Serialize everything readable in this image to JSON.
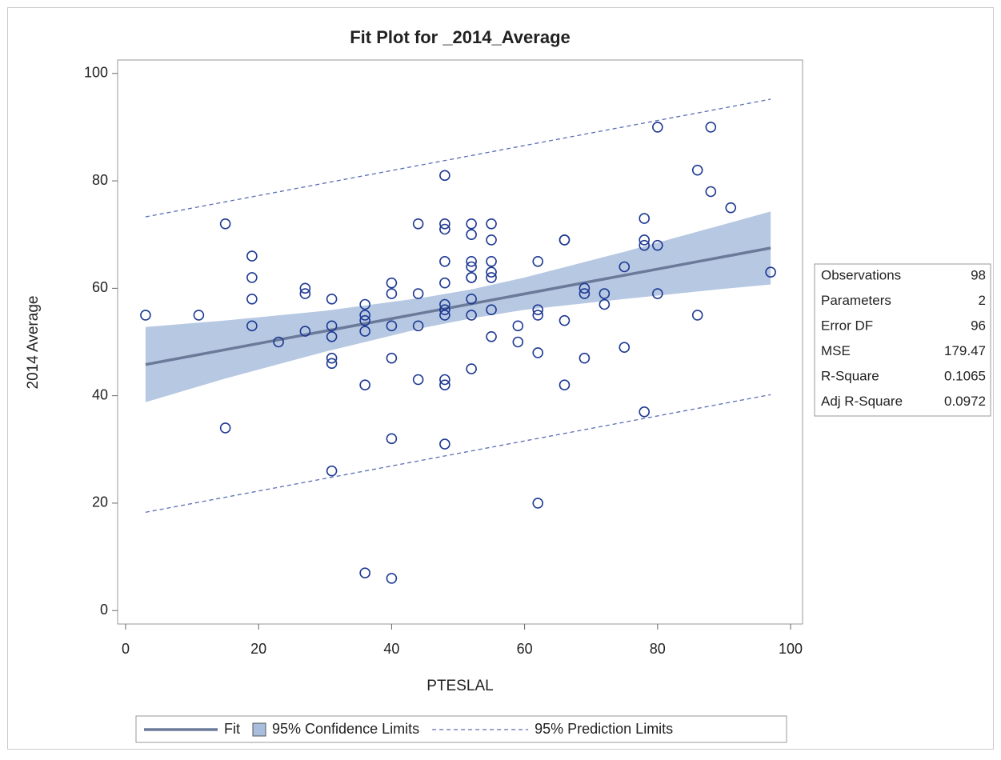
{
  "chart_data": {
    "type": "scatter",
    "title": "Fit Plot for _2014_Average",
    "x_label": "PTESLAL",
    "y_label": "2014 Average",
    "xlim": [
      -1.2,
      101.8
    ],
    "ylim": [
      -2.5,
      102.5
    ],
    "xticks": [
      0,
      20,
      40,
      60,
      80,
      100
    ],
    "yticks": [
      0,
      20,
      40,
      60,
      80,
      100
    ],
    "grid": false,
    "points": {
      "color": "#1f3a93",
      "x": [
        3,
        11,
        15,
        15,
        19,
        19,
        19,
        19,
        23,
        27,
        27,
        27,
        31,
        31,
        31,
        31,
        31,
        31,
        36,
        36,
        36,
        36,
        36,
        36,
        40,
        40,
        40,
        40,
        40,
        40,
        44,
        44,
        44,
        44,
        48,
        48,
        48,
        48,
        48,
        48,
        48,
        48,
        48,
        48,
        48,
        52,
        52,
        52,
        52,
        52,
        52,
        52,
        52,
        52,
        55,
        55,
        55,
        55,
        55,
        55,
        55,
        59,
        59,
        62,
        62,
        62,
        62,
        62,
        66,
        66,
        66,
        66,
        69,
        69,
        69,
        72,
        72,
        75,
        75,
        78,
        78,
        78,
        78,
        80,
        80,
        80,
        86,
        86,
        88,
        88,
        91,
        97
      ],
      "values": [
        55,
        55,
        72,
        34,
        66,
        62,
        58,
        53,
        50,
        60,
        59,
        52,
        58,
        53,
        51,
        47,
        46,
        26,
        57,
        55,
        54,
        52,
        42,
        7,
        61,
        59,
        53,
        47,
        32,
        6,
        72,
        59,
        53,
        43,
        81,
        72,
        71,
        65,
        61,
        57,
        56,
        55,
        43,
        42,
        31,
        72,
        70,
        65,
        64,
        62,
        62,
        58,
        55,
        45,
        72,
        69,
        65,
        63,
        62,
        56,
        51,
        53,
        50,
        65,
        56,
        55,
        48,
        20,
        69,
        69,
        54,
        42,
        60,
        59,
        47,
        59,
        57,
        64,
        49,
        73,
        69,
        68,
        37,
        90,
        68,
        59,
        82,
        55,
        90,
        78,
        75,
        63
      ]
    },
    "series": [
      {
        "name": "Fit",
        "type": "line",
        "color": "#6b7a99",
        "x": [
          3,
          97
        ],
        "values": [
          45.8,
          67.5
        ]
      },
      {
        "name": "95% Confidence Limits",
        "type": "band",
        "color": "#a9bedd",
        "x": [
          3,
          15,
          30,
          45,
          52,
          60,
          75,
          90,
          97
        ],
        "upper": [
          52.8,
          54.0,
          55.8,
          58.3,
          59.8,
          62.0,
          66.8,
          71.9,
          74.3
        ],
        "lower": [
          38.8,
          43.2,
          48.2,
          52.7,
          54.4,
          56.0,
          58.0,
          59.9,
          60.7
        ]
      },
      {
        "name": "95% Prediction Limits",
        "type": "dashed",
        "color": "#5a6db5",
        "x": [
          3,
          97
        ],
        "upper": [
          73.3,
          95.2
        ],
        "lower": [
          18.3,
          40.2
        ]
      }
    ],
    "stats": [
      [
        "Observations",
        98
      ],
      [
        "Parameters",
        2
      ],
      [
        "Error DF",
        96
      ],
      [
        "MSE",
        179.47
      ],
      [
        "R-Square",
        0.1065
      ],
      [
        "Adj R-Square",
        0.0972
      ]
    ]
  }
}
